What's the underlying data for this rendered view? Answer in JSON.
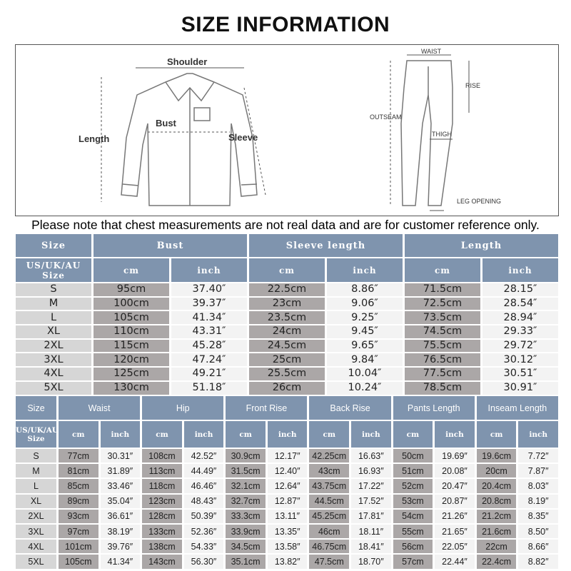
{
  "title": "SIZE INFORMATION",
  "diagram": {
    "top_labels": [
      "Shoulder",
      "Bust",
      "Length",
      "Sleeve"
    ],
    "pants_labels": [
      "WAIST",
      "RISE",
      "OUTSEAM",
      "THIGH",
      "LEG OPENING"
    ]
  },
  "note": "Please note that chest measurements are not real data and are for customer reference only.",
  "top_table": {
    "headers": [
      "Size",
      "Bust",
      "Sleeve length",
      "Length"
    ],
    "size_sub": "US/UK/AU Size",
    "unit_cm": "cm",
    "unit_inch": "inch",
    "rows": [
      [
        "S",
        "95cm",
        "37.40″",
        "22.5cm",
        "8.86″",
        "71.5cm",
        "28.15″"
      ],
      [
        "M",
        "100cm",
        "39.37″",
        "23cm",
        "9.06″",
        "72.5cm",
        "28.54″"
      ],
      [
        "L",
        "105cm",
        "41.34″",
        "23.5cm",
        "9.25″",
        "73.5cm",
        "28.94″"
      ],
      [
        "XL",
        "110cm",
        "43.31″",
        "24cm",
        "9.45″",
        "74.5cm",
        "29.33″"
      ],
      [
        "2XL",
        "115cm",
        "45.28″",
        "24.5cm",
        "9.65″",
        "75.5cm",
        "29.72″"
      ],
      [
        "3XL",
        "120cm",
        "47.24″",
        "25cm",
        "9.84″",
        "76.5cm",
        "30.12″"
      ],
      [
        "4XL",
        "125cm",
        "49.21″",
        "25.5cm",
        "10.04″",
        "77.5cm",
        "30.51″"
      ],
      [
        "5XL",
        "130cm",
        "51.18″",
        "26cm",
        "10.24″",
        "78.5cm",
        "30.91″"
      ]
    ]
  },
  "pants_table": {
    "headers": [
      "Size",
      "Waist",
      "Hip",
      "Front Rise",
      "Back Rise",
      "Pants Length",
      "Inseam Length"
    ],
    "size_sub": "US/UK/AU Size",
    "unit_cm": "cm",
    "unit_inch": "inch",
    "rows": [
      [
        "S",
        "77cm",
        "30.31″",
        "108cm",
        "42.52″",
        "30.9cm",
        "12.17″",
        "42.25cm",
        "16.63″",
        "50cm",
        "19.69″",
        "19.6cm",
        "7.72″"
      ],
      [
        "M",
        "81cm",
        "31.89″",
        "113cm",
        "44.49″",
        "31.5cm",
        "12.40″",
        "43cm",
        "16.93″",
        "51cm",
        "20.08″",
        "20cm",
        "7.87″"
      ],
      [
        "L",
        "85cm",
        "33.46″",
        "118cm",
        "46.46″",
        "32.1cm",
        "12.64″",
        "43.75cm",
        "17.22″",
        "52cm",
        "20.47″",
        "20.4cm",
        "8.03″"
      ],
      [
        "XL",
        "89cm",
        "35.04″",
        "123cm",
        "48.43″",
        "32.7cm",
        "12.87″",
        "44.5cm",
        "17.52″",
        "53cm",
        "20.87″",
        "20.8cm",
        "8.19″"
      ],
      [
        "2XL",
        "93cm",
        "36.61″",
        "128cm",
        "50.39″",
        "33.3cm",
        "13.11″",
        "45.25cm",
        "17.81″",
        "54cm",
        "21.26″",
        "21.2cm",
        "8.35″"
      ],
      [
        "3XL",
        "97cm",
        "38.19″",
        "133cm",
        "52.36″",
        "33.9cm",
        "13.35″",
        "46cm",
        "18.11″",
        "55cm",
        "21.65″",
        "21.6cm",
        "8.50″"
      ],
      [
        "4XL",
        "101cm",
        "39.76″",
        "138cm",
        "54.33″",
        "34.5cm",
        "13.58″",
        "46.75cm",
        "18.41″",
        "56cm",
        "22.05″",
        "22cm",
        "8.66″"
      ],
      [
        "5XL",
        "105cm",
        "41.34″",
        "143cm",
        "56.30″",
        "35.1cm",
        "13.82″",
        "47.5cm",
        "18.70″",
        "57cm",
        "22.44″",
        "22.4cm",
        "8.82″"
      ]
    ]
  },
  "colors": {
    "header": "#7f94ae",
    "size_cell": "#d6d6d6",
    "cm_cell": "#aba7a7",
    "inch_cell": "#f3f3f3"
  }
}
